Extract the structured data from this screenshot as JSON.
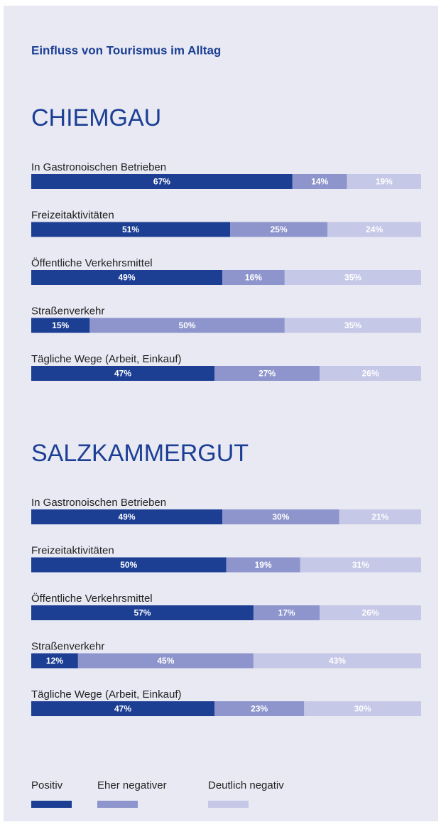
{
  "title": "Einfluss von Tourismus im Alltag",
  "chart_data": [
    {
      "type": "stacked-bar",
      "title": "CHIEMGAU",
      "xlim": [
        0,
        100
      ],
      "categories": [
        "In Gastronoischen Betrieben",
        "Freizeitaktivitäten",
        "Öffentliche Verkehrsmittel",
        "Straßenverkehr",
        "Tägliche Wege (Arbeit, Einkauf)"
      ],
      "series": [
        {
          "name": "Positiv",
          "color": "#1c3f94",
          "values": [
            67,
            51,
            49,
            15,
            47
          ],
          "value_labels": [
            "67%",
            "51%",
            "49%",
            "15%",
            "47%"
          ]
        },
        {
          "name": "Eher negativer",
          "color": "#8e95cc",
          "values": [
            14,
            25,
            16,
            50,
            27
          ],
          "value_labels": [
            "14%",
            "25%",
            "16%",
            "50%",
            "27%"
          ]
        },
        {
          "name": "Deutlich negativ",
          "color": "#c6c8e7",
          "values": [
            19,
            24,
            35,
            35,
            26
          ],
          "value_labels": [
            "19%",
            "24%",
            "35%",
            "35%",
            "26%"
          ]
        }
      ]
    },
    {
      "type": "stacked-bar",
      "title": "SALZKAMMERGUT",
      "xlim": [
        0,
        100
      ],
      "categories": [
        "In Gastronoischen Betrieben",
        "Freizeitaktivitäten",
        "Öffentliche Verkehrsmittel",
        "Straßenverkehr",
        "Tägliche Wege (Arbeit, Einkauf)"
      ],
      "series": [
        {
          "name": "Positiv",
          "color": "#1c3f94",
          "values": [
            49,
            50,
            57,
            12,
            47
          ],
          "value_labels": [
            "49%",
            "50%",
            "57%",
            "12%",
            "47%"
          ]
        },
        {
          "name": "Eher negativer",
          "color": "#8e95cc",
          "values": [
            30,
            19,
            17,
            45,
            23
          ],
          "value_labels": [
            "30%",
            "19%",
            "17%",
            "45%",
            "23%"
          ]
        },
        {
          "name": "Deutlich negativ",
          "color": "#c6c8e7",
          "values": [
            21,
            31,
            26,
            43,
            30
          ],
          "value_labels": [
            "21%",
            "31%",
            "26%",
            "43%",
            "30%"
          ]
        }
      ]
    }
  ]
}
